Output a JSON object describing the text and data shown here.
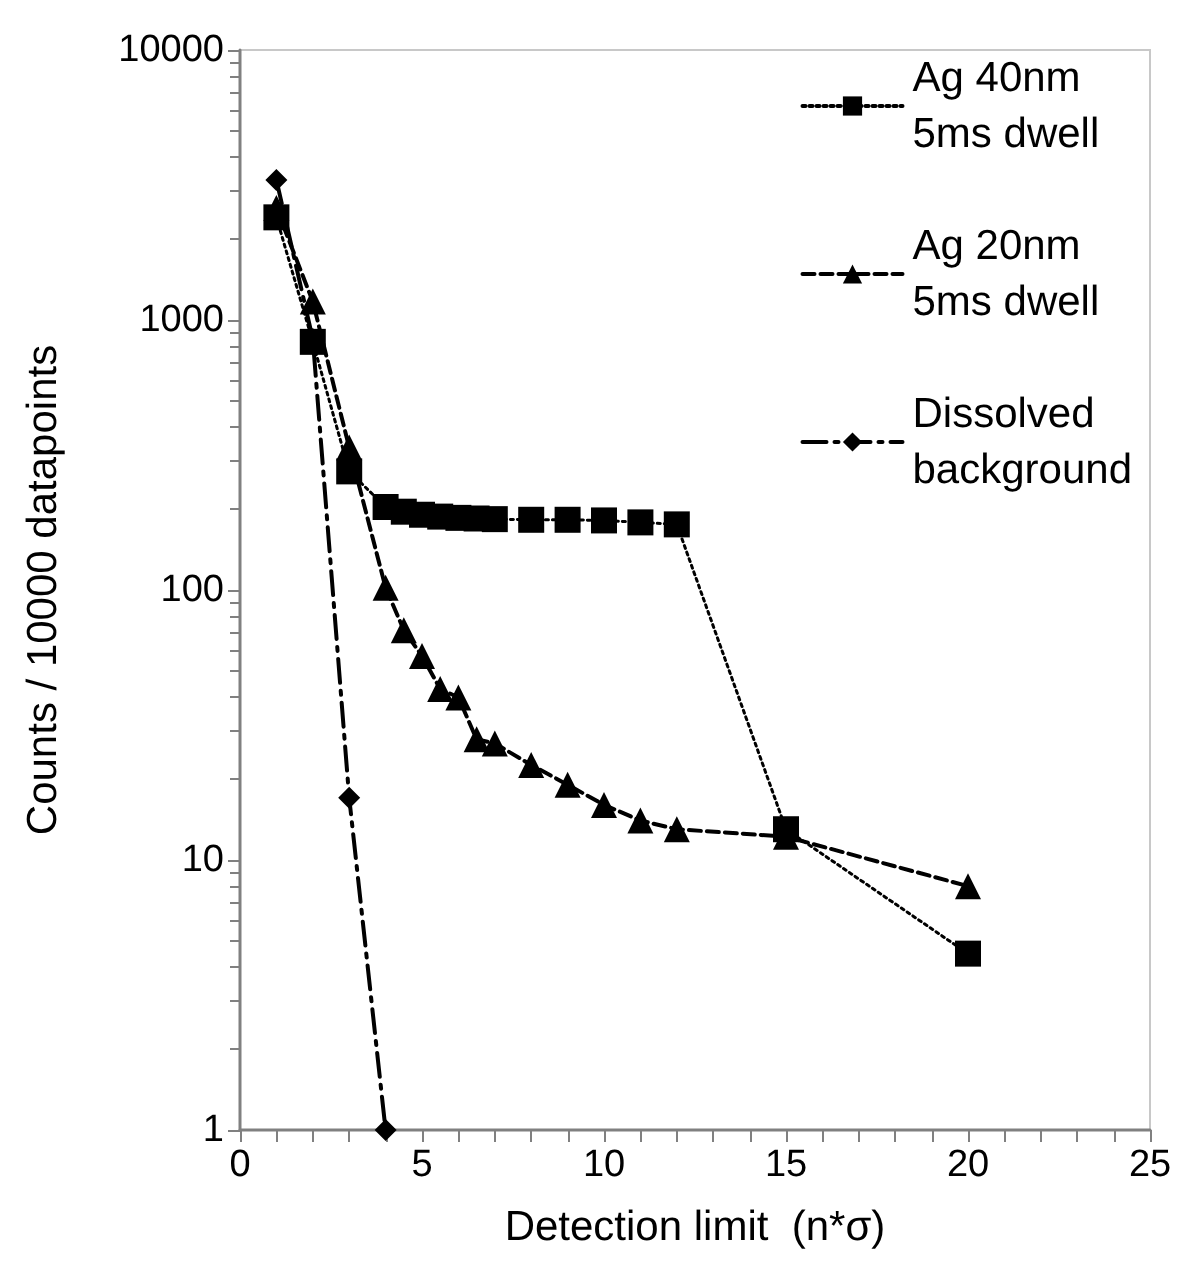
{
  "chart_data": {
    "type": "line",
    "xlabel": "Detection limit  (n*σ)",
    "ylabel": "Counts / 10000 datapoints",
    "log": "y",
    "grid": false,
    "legend": "top right",
    "xlim": [
      0,
      25
    ],
    "xticks": [
      0,
      5,
      10,
      15,
      20,
      25
    ],
    "ylim": [
      1,
      10000
    ],
    "yticks": [
      1,
      10,
      100,
      1000,
      10000
    ],
    "series": [
      {
        "name": "Ag 40nm\n5ms dwell",
        "color": "#000000",
        "marker": "square",
        "line_style": "dotted",
        "x": [
          1,
          2,
          3,
          4,
          4.5,
          5,
          5.5,
          6,
          6.5,
          7,
          8,
          9,
          10,
          11,
          12,
          15,
          20
        ],
        "values": [
          2400,
          830,
          275,
          203,
          195,
          190,
          187,
          185,
          184,
          183,
          182,
          182,
          181,
          178,
          175,
          13,
          4.5
        ]
      },
      {
        "name": "Ag 20nm\n5ms dwell",
        "color": "#000000",
        "marker": "triangle",
        "line_style": "dashed",
        "x": [
          1,
          2,
          3,
          4,
          4.5,
          5,
          5.5,
          6,
          6.5,
          7,
          8,
          9,
          10,
          11,
          12,
          15,
          20
        ],
        "values": [
          2600,
          1170,
          337,
          102,
          71,
          57,
          43,
          40,
          28,
          27,
          22.5,
          19,
          16,
          14,
          13,
          12.2,
          8
        ]
      },
      {
        "name": "Dissolved\nbackground",
        "color": "#000000",
        "marker": "diamond",
        "line_style": "dashdot",
        "x": [
          1,
          2,
          3,
          4
        ],
        "values": [
          3300,
          850,
          17,
          1
        ]
      }
    ]
  }
}
